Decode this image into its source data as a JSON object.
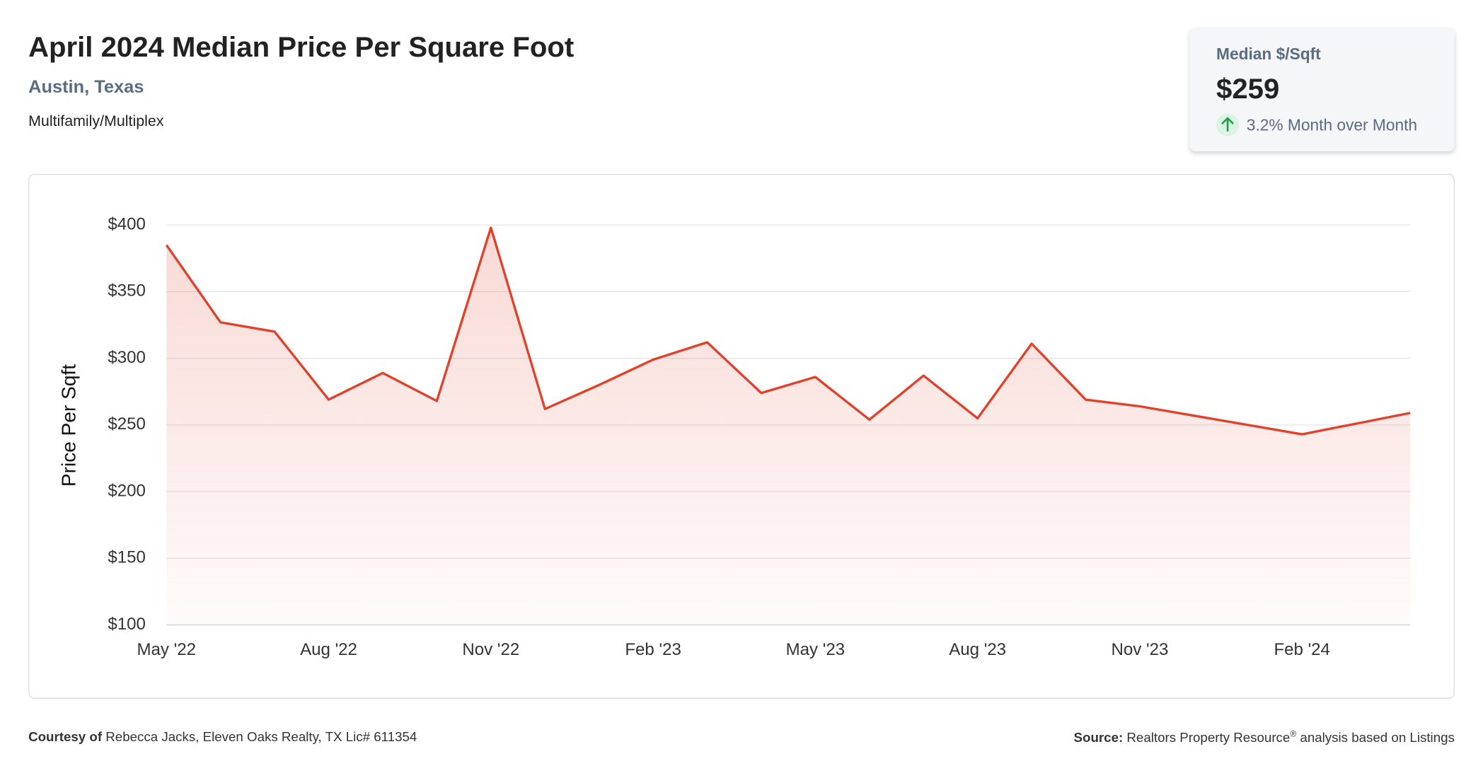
{
  "header": {
    "title": "April 2024 Median Price Per Square Foot",
    "location": "Austin, Texas",
    "property_type": "Multifamily/Multiplex"
  },
  "card": {
    "label": "Median $/Sqft",
    "value": "$259",
    "change": "3.2% Month over Month"
  },
  "chart_data": {
    "type": "line",
    "y_label": "Price Per Sqft",
    "categories": [
      "May '22",
      null,
      null,
      "Aug '22",
      null,
      null,
      "Nov '22",
      null,
      null,
      "Feb '23",
      null,
      null,
      "May '23",
      null,
      null,
      "Aug '23",
      null,
      null,
      "Nov '23",
      null,
      null,
      "Feb '24",
      null,
      null
    ],
    "series": [
      {
        "name": "Median Price Per Sqft",
        "color": "#e0412b",
        "values": [
          385,
          327,
          320,
          269,
          289,
          268,
          398,
          262,
          280,
          299,
          312,
          274,
          286,
          254,
          287,
          255,
          311,
          269,
          264,
          257,
          250,
          243,
          251,
          259
        ]
      }
    ],
    "ylim": [
      100,
      400
    ],
    "yticks": [
      {
        "value": 100,
        "label": "$100"
      },
      {
        "value": 150,
        "label": "$150"
      },
      {
        "value": 200,
        "label": "$200"
      },
      {
        "value": 250,
        "label": "$250"
      },
      {
        "value": 300,
        "label": "$300"
      },
      {
        "value": 350,
        "label": "$350"
      },
      {
        "value": 400,
        "label": "$400"
      }
    ],
    "grid": true
  },
  "footer": {
    "courtesy_label": "Courtesy of",
    "courtesy": "Rebecca Jacks, Eleven Oaks Realty, TX Lic# 611354",
    "source_label": "Source:",
    "source": "Realtors Property Resource",
    "source_mark": "®",
    "source_rest": "analysis based on Listings"
  }
}
